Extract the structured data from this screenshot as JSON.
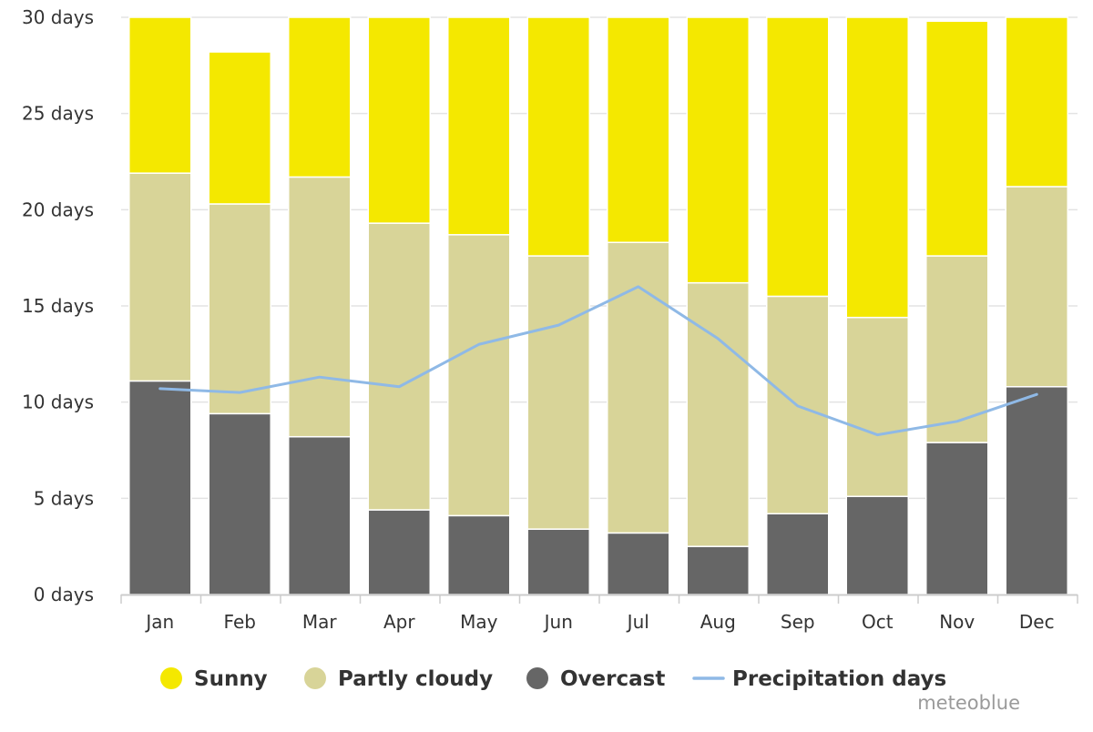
{
  "chart_data": {
    "type": "bar",
    "stacked": true,
    "categories": [
      "Jan",
      "Feb",
      "Mar",
      "Apr",
      "May",
      "Jun",
      "Jul",
      "Aug",
      "Sep",
      "Oct",
      "Nov",
      "Dec"
    ],
    "series": [
      {
        "name": "Overcast",
        "color": "#666666",
        "values": [
          11.1,
          9.4,
          8.2,
          4.4,
          4.1,
          3.4,
          3.2,
          2.5,
          4.2,
          5.1,
          7.9,
          10.8
        ]
      },
      {
        "name": "Partly cloudy",
        "color": "#d8d498",
        "values": [
          10.8,
          10.9,
          13.5,
          14.9,
          14.6,
          14.2,
          15.1,
          13.7,
          11.3,
          9.3,
          9.7,
          10.4
        ]
      },
      {
        "name": "Sunny",
        "color": "#f4e800",
        "values": [
          9.1,
          7.9,
          9.3,
          11.7,
          12.3,
          12.4,
          12.7,
          14.8,
          14.5,
          16.6,
          12.2,
          9.8
        ]
      }
    ],
    "line_series": {
      "name": "Precipitation days",
      "color": "#8fb9e6",
      "values": [
        10.7,
        10.5,
        11.3,
        10.8,
        13.0,
        14.0,
        16.0,
        13.3,
        9.8,
        8.3,
        9.0,
        10.4
      ]
    },
    "ylim": [
      0,
      30
    ],
    "yticks": [
      {
        "value": 0,
        "label": "0 days"
      },
      {
        "value": 5,
        "label": "5 days"
      },
      {
        "value": 10,
        "label": "10 days"
      },
      {
        "value": 15,
        "label": "15 days"
      },
      {
        "value": 20,
        "label": "20 days"
      },
      {
        "value": 25,
        "label": "25 days"
      },
      {
        "value": 30,
        "label": "30 days"
      }
    ],
    "grid": true,
    "legend": {
      "position": "bottom",
      "items": [
        {
          "label": "Sunny",
          "color": "#f4e800",
          "marker": "circle"
        },
        {
          "label": "Partly cloudy",
          "color": "#d8d498",
          "marker": "circle"
        },
        {
          "label": "Overcast",
          "color": "#666666",
          "marker": "circle"
        },
        {
          "label": "Precipitation days",
          "color": "#8fb9e6",
          "marker": "line"
        }
      ]
    },
    "credit": "meteoblue"
  }
}
